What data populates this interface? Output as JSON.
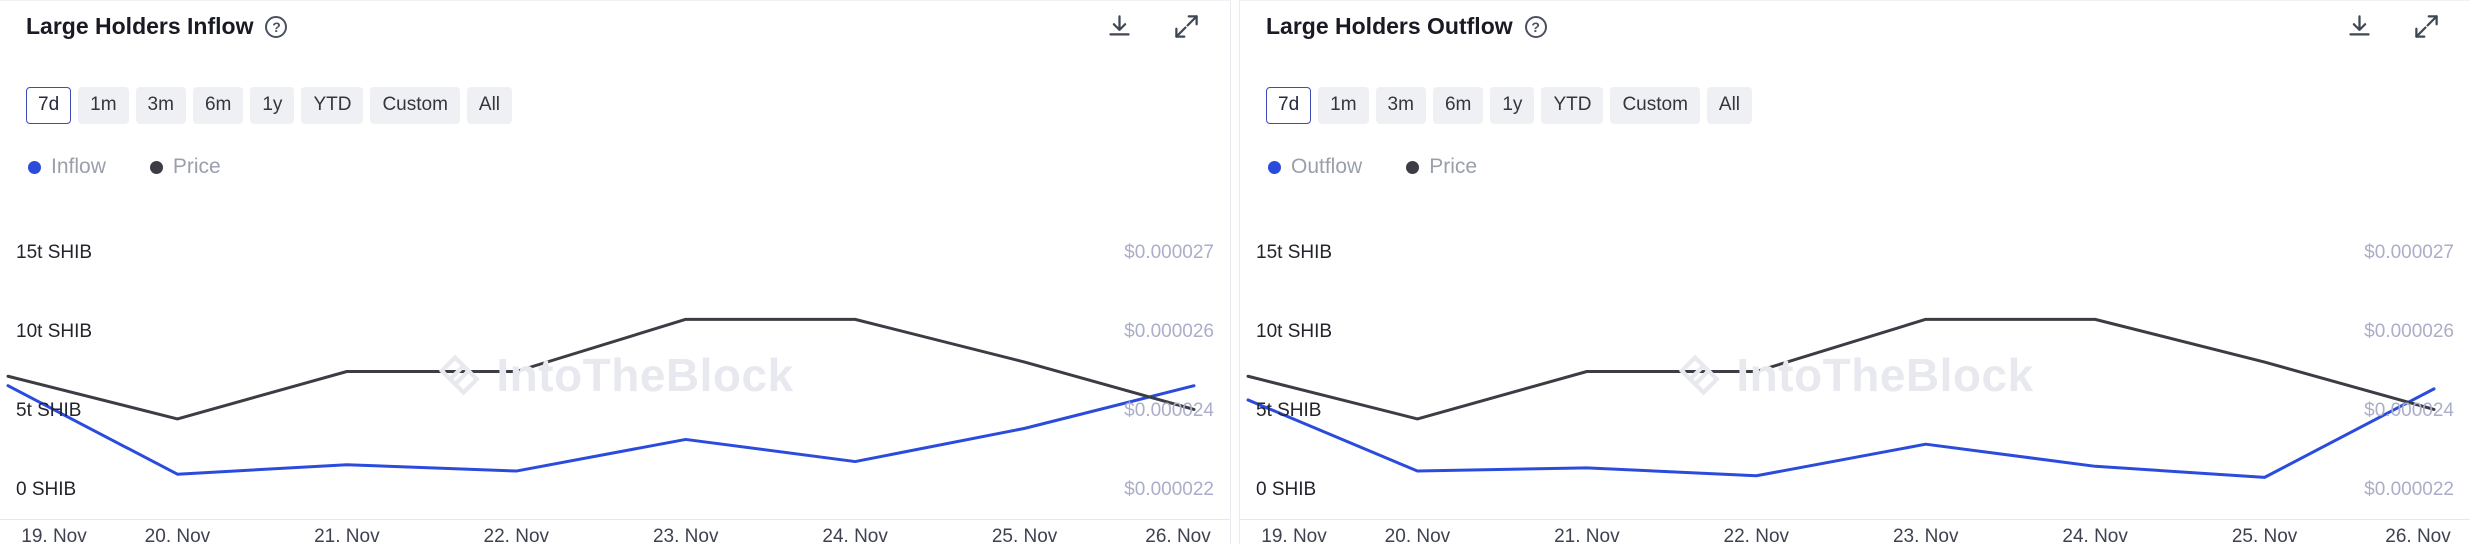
{
  "panels": [
    {
      "title": "Large Holders Inflow",
      "icons": {
        "help": "question-circle-icon",
        "help_glyph": "?",
        "download": "download-icon",
        "expand": "expand-icon"
      },
      "ranges": [
        "7d",
        "1m",
        "3m",
        "6m",
        "1y",
        "YTD",
        "Custom",
        "All"
      ],
      "selected_range": "7d",
      "legend": [
        {
          "label": "Inflow",
          "color": "#2b4bdd"
        },
        {
          "label": "Price",
          "color": "#3c3d44"
        }
      ],
      "chart_data": {
        "type": "line",
        "title": "Large Holders Inflow",
        "x": [
          "19. Nov",
          "20. Nov",
          "21. Nov",
          "22. Nov",
          "23. Nov",
          "24. Nov",
          "25. Nov",
          "26. Nov"
        ],
        "series": [
          {
            "name": "Inflow",
            "unit": "SHIB_trillions",
            "color": "#2b4bdd",
            "values": [
              6.6,
              1.0,
              1.6,
              1.2,
              3.2,
              1.8,
              3.9,
              6.6
            ]
          },
          {
            "name": "Price",
            "unit": "USD",
            "color": "#3c3d44",
            "values": [
              2.44e-05,
              2.35e-05,
              2.45e-05,
              2.45e-05,
              2.56e-05,
              2.56e-05,
              2.47e-05,
              2.37e-05
            ]
          }
        ],
        "y_left_ticks": [
          "15t SHIB",
          "10t SHIB",
          "5t SHIB",
          "0 SHIB"
        ],
        "y_right_ticks": [
          "$0.000027",
          "$0.000026",
          "$0.000024",
          "$0.000022"
        ],
        "left_axis_range": [
          0,
          15
        ],
        "right_axis_range": [
          2.2e-05,
          2.7e-05
        ],
        "grid": false,
        "legend_position": "top-left",
        "watermark": "IntoTheBlock"
      }
    },
    {
      "title": "Large Holders Outflow",
      "icons": {
        "help": "question-circle-icon",
        "help_glyph": "?",
        "download": "download-icon",
        "expand": "expand-icon"
      },
      "ranges": [
        "7d",
        "1m",
        "3m",
        "6m",
        "1y",
        "YTD",
        "Custom",
        "All"
      ],
      "selected_range": "7d",
      "legend": [
        {
          "label": "Outflow",
          "color": "#2b4bdd"
        },
        {
          "label": "Price",
          "color": "#3c3d44"
        }
      ],
      "chart_data": {
        "type": "line",
        "title": "Large Holders Outflow",
        "x": [
          "19. Nov",
          "20. Nov",
          "21. Nov",
          "22. Nov",
          "23. Nov",
          "24. Nov",
          "25. Nov",
          "26. Nov"
        ],
        "series": [
          {
            "name": "Outflow",
            "unit": "SHIB_trillions",
            "color": "#2b4bdd",
            "values": [
              5.7,
              1.2,
              1.4,
              0.9,
              2.9,
              1.5,
              0.8,
              6.4
            ]
          },
          {
            "name": "Price",
            "unit": "USD",
            "color": "#3c3d44",
            "values": [
              2.44e-05,
              2.35e-05,
              2.45e-05,
              2.45e-05,
              2.56e-05,
              2.56e-05,
              2.47e-05,
              2.37e-05
            ]
          }
        ],
        "y_left_ticks": [
          "15t SHIB",
          "10t SHIB",
          "5t SHIB",
          "0 SHIB"
        ],
        "y_right_ticks": [
          "$0.000027",
          "$0.000026",
          "$0.000024",
          "$0.000022"
        ],
        "left_axis_range": [
          0,
          15
        ],
        "right_axis_range": [
          2.2e-05,
          2.7e-05
        ],
        "grid": false,
        "legend_position": "top-left",
        "watermark": "IntoTheBlock"
      }
    }
  ]
}
